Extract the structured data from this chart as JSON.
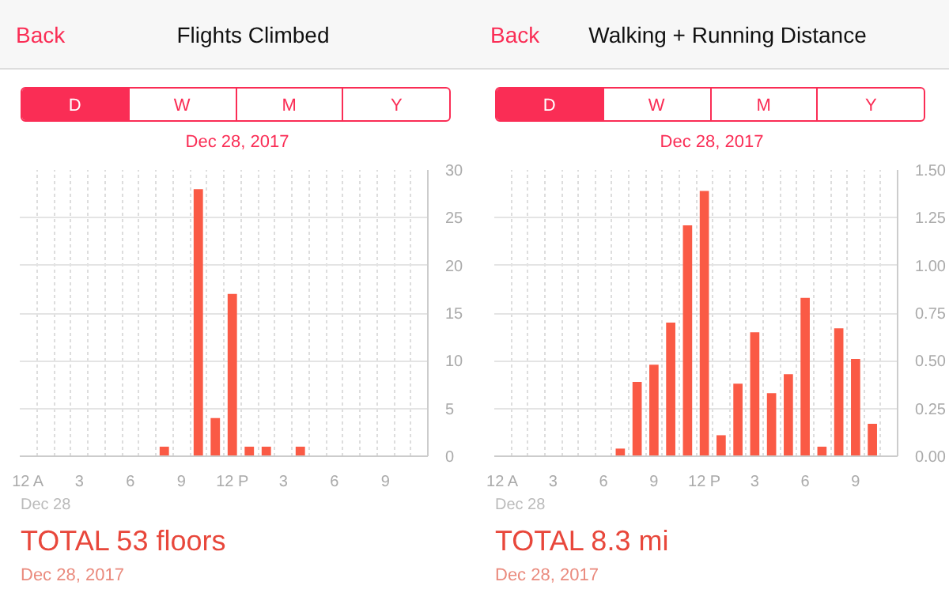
{
  "chart_data": [
    {
      "type": "bar",
      "title": "Flights Climbed",
      "categories": [
        "12 A",
        null,
        null,
        "3",
        null,
        null,
        "6",
        null,
        null,
        "9",
        null,
        null,
        "12 P",
        null,
        null,
        "3",
        null,
        null,
        "6",
        null,
        null,
        "9",
        null,
        null
      ],
      "values": [
        null,
        null,
        null,
        null,
        null,
        null,
        null,
        null,
        1,
        null,
        28,
        4,
        17,
        1,
        1,
        null,
        1,
        null,
        null,
        null,
        null,
        null,
        null,
        null
      ],
      "color": "#fa5a45",
      "ylim": [
        0,
        30
      ],
      "yticks": [
        0,
        5,
        10,
        15,
        20,
        25,
        30
      ],
      "grid": true,
      "annotations": [
        "Back",
        "D",
        "W",
        "M",
        "Y",
        "Dec 28, 2017",
        "Dec 28",
        "TOTAL 53 floors",
        "Dec 28, 2017"
      ]
    },
    {
      "type": "bar",
      "title": "Walking + Running Distance",
      "categories": [
        "12 A",
        null,
        null,
        "3",
        null,
        null,
        "6",
        null,
        null,
        "9",
        null,
        null,
        "12 P",
        null,
        null,
        "3",
        null,
        null,
        "6",
        null,
        null,
        "9",
        null,
        null
      ],
      "values": [
        null,
        null,
        null,
        null,
        null,
        null,
        null,
        0.04,
        0.39,
        0.48,
        0.7,
        1.21,
        1.39,
        0.11,
        0.38,
        0.65,
        0.33,
        0.43,
        0.83,
        0.05,
        0.67,
        0.51,
        0.17,
        null
      ],
      "color": "#fa5a45",
      "ylim": [
        0,
        1.5
      ],
      "yticks": [
        {
          "value": 0,
          "label": "0.00"
        },
        {
          "value": 0.25,
          "label": "0.25"
        },
        {
          "value": 0.5,
          "label": "0.50"
        },
        {
          "value": 0.75,
          "label": "0.75"
        },
        {
          "value": 1,
          "label": "1.00"
        },
        {
          "value": 1.25,
          "label": "1.25"
        },
        {
          "value": 1.5,
          "label": "1.50"
        }
      ],
      "grid": true,
      "annotations": [
        "Back",
        "D",
        "W",
        "M",
        "Y",
        "Dec 28, 2017",
        "Dec 28",
        "TOTAL 8.3 mi",
        "Dec 28, 2017"
      ]
    }
  ]
}
